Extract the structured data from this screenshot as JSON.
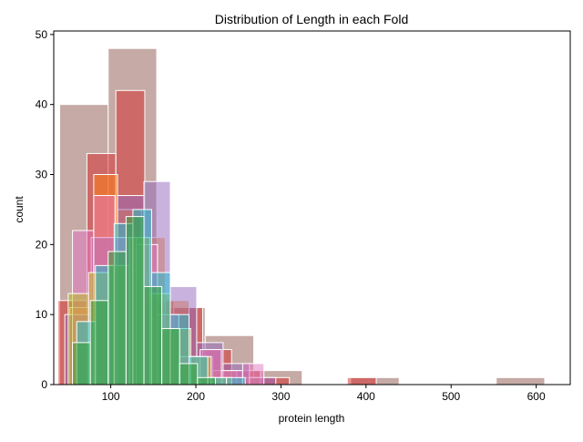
{
  "chart_data": {
    "type": "histogram",
    "title": "Distribution of Length in each Fold",
    "xlabel": "protein length",
    "ylabel": "count",
    "xlim": [
      33,
      640
    ],
    "ylim": [
      0,
      50.5
    ],
    "x_ticks": [
      100,
      200,
      300,
      400,
      500,
      600
    ],
    "y_ticks": [
      0,
      10,
      20,
      30,
      40,
      50
    ],
    "grid": false,
    "legend": "none",
    "alpha": 0.5,
    "bar_edge_color": "#ffffff",
    "series": [
      {
        "color": "#8c564b",
        "bins": [
          {
            "x0": 40,
            "x1": 97,
            "count": 40
          },
          {
            "x0": 97,
            "x1": 154,
            "count": 48
          },
          {
            "x0": 154,
            "x1": 211,
            "count": 11
          },
          {
            "x0": 211,
            "x1": 268,
            "count": 7
          },
          {
            "x0": 268,
            "x1": 325,
            "count": 2
          },
          {
            "x0": 325,
            "x1": 382,
            "count": 0
          },
          {
            "x0": 382,
            "x1": 439,
            "count": 1
          },
          {
            "x0": 439,
            "x1": 496,
            "count": 0
          },
          {
            "x0": 496,
            "x1": 553,
            "count": 0
          },
          {
            "x0": 553,
            "x1": 610,
            "count": 1
          }
        ]
      },
      {
        "color": "#d62728",
        "bins": [
          {
            "x0": 38,
            "x1": 72,
            "count": 12
          },
          {
            "x0": 72,
            "x1": 106,
            "count": 33
          },
          {
            "x0": 106,
            "x1": 140,
            "count": 42
          },
          {
            "x0": 140,
            "x1": 174,
            "count": 12
          },
          {
            "x0": 174,
            "x1": 208,
            "count": 11
          },
          {
            "x0": 208,
            "x1": 242,
            "count": 5
          },
          {
            "x0": 242,
            "x1": 276,
            "count": 2
          },
          {
            "x0": 276,
            "x1": 310,
            "count": 1
          },
          {
            "x0": 310,
            "x1": 344,
            "count": 0
          },
          {
            "x0": 344,
            "x1": 378,
            "count": 0
          },
          {
            "x0": 378,
            "x1": 412,
            "count": 1
          }
        ]
      },
      {
        "color": "#ff7f0e",
        "bins": [
          {
            "x0": 52,
            "x1": 80,
            "count": 11
          },
          {
            "x0": 80,
            "x1": 108,
            "count": 30
          },
          {
            "x0": 108,
            "x1": 136,
            "count": 25
          },
          {
            "x0": 136,
            "x1": 164,
            "count": 21
          },
          {
            "x0": 164,
            "x1": 192,
            "count": 12
          },
          {
            "x0": 192,
            "x1": 220,
            "count": 4
          },
          {
            "x0": 220,
            "x1": 248,
            "count": 2
          },
          {
            "x0": 248,
            "x1": 276,
            "count": 1
          }
        ]
      },
      {
        "color": "#9467bd",
        "bins": [
          {
            "x0": 46,
            "x1": 77,
            "count": 10
          },
          {
            "x0": 77,
            "x1": 108,
            "count": 21
          },
          {
            "x0": 108,
            "x1": 139,
            "count": 27
          },
          {
            "x0": 139,
            "x1": 170,
            "count": 29
          },
          {
            "x0": 170,
            "x1": 201,
            "count": 14
          },
          {
            "x0": 201,
            "x1": 232,
            "count": 6
          },
          {
            "x0": 232,
            "x1": 263,
            "count": 3
          },
          {
            "x0": 263,
            "x1": 294,
            "count": 1
          }
        ]
      },
      {
        "color": "#e377c2",
        "bins": [
          {
            "x0": 55,
            "x1": 80,
            "count": 22
          },
          {
            "x0": 80,
            "x1": 105,
            "count": 27
          },
          {
            "x0": 105,
            "x1": 130,
            "count": 21
          },
          {
            "x0": 130,
            "x1": 155,
            "count": 20
          },
          {
            "x0": 155,
            "x1": 180,
            "count": 10
          },
          {
            "x0": 180,
            "x1": 205,
            "count": 4
          },
          {
            "x0": 205,
            "x1": 230,
            "count": 5
          },
          {
            "x0": 230,
            "x1": 255,
            "count": 2
          },
          {
            "x0": 255,
            "x1": 280,
            "count": 3
          }
        ]
      },
      {
        "color": "#bcbd22",
        "bins": [
          {
            "x0": 50,
            "x1": 74,
            "count": 13
          },
          {
            "x0": 74,
            "x1": 98,
            "count": 16
          },
          {
            "x0": 98,
            "x1": 122,
            "count": 17
          },
          {
            "x0": 122,
            "x1": 146,
            "count": 21
          },
          {
            "x0": 146,
            "x1": 170,
            "count": 13
          },
          {
            "x0": 170,
            "x1": 194,
            "count": 8
          },
          {
            "x0": 194,
            "x1": 218,
            "count": 4
          },
          {
            "x0": 218,
            "x1": 242,
            "count": 1
          }
        ]
      },
      {
        "color": "#17becf",
        "bins": [
          {
            "x0": 60,
            "x1": 82,
            "count": 9
          },
          {
            "x0": 82,
            "x1": 104,
            "count": 17
          },
          {
            "x0": 104,
            "x1": 126,
            "count": 23
          },
          {
            "x0": 126,
            "x1": 148,
            "count": 25
          },
          {
            "x0": 148,
            "x1": 170,
            "count": 16
          },
          {
            "x0": 170,
            "x1": 192,
            "count": 10
          },
          {
            "x0": 192,
            "x1": 214,
            "count": 4
          },
          {
            "x0": 214,
            "x1": 236,
            "count": 1
          },
          {
            "x0": 236,
            "x1": 258,
            "count": 1
          }
        ]
      },
      {
        "color": "#2ca02c",
        "bins": [
          {
            "x0": 55,
            "x1": 76,
            "count": 6
          },
          {
            "x0": 76,
            "x1": 97,
            "count": 12
          },
          {
            "x0": 97,
            "x1": 118,
            "count": 19
          },
          {
            "x0": 118,
            "x1": 139,
            "count": 24
          },
          {
            "x0": 139,
            "x1": 160,
            "count": 14
          },
          {
            "x0": 160,
            "x1": 181,
            "count": 8
          },
          {
            "x0": 181,
            "x1": 202,
            "count": 3
          },
          {
            "x0": 202,
            "x1": 223,
            "count": 1
          }
        ]
      }
    ]
  }
}
